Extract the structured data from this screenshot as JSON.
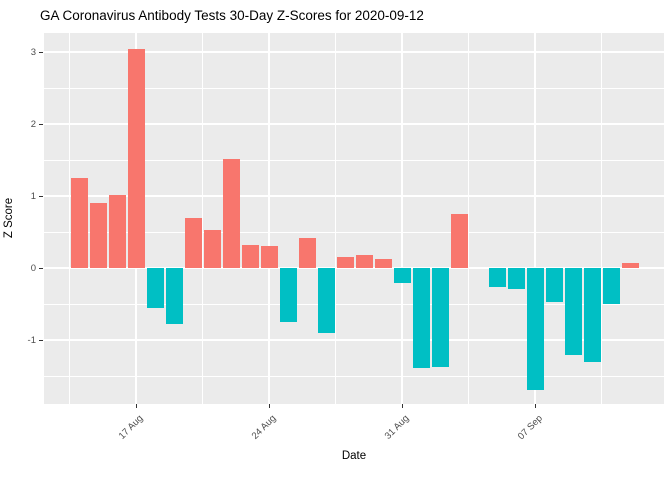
{
  "chart_data": {
    "type": "bar",
    "title": "GA Coronavirus Antibody Tests 30-Day Z-Scores for 2020-09-12",
    "xlabel": "Date",
    "ylabel": "Z Score",
    "ylim": [
      -1.89,
      3.26
    ],
    "grid": true,
    "legend": "none",
    "y_major_ticks": [
      3,
      2,
      1,
      0,
      -1
    ],
    "y_major_tick_labels": [
      "3",
      "2",
      "1",
      "0",
      "-1"
    ],
    "y_minor_ticks": [
      2.5,
      1.5,
      0.5,
      -0.5,
      -1.5
    ],
    "x_major_ticks_day_index": [
      3,
      10,
      17,
      24
    ],
    "x_major_tick_labels": [
      "17 Aug",
      "24 Aug",
      "31 Aug",
      "07 Sep"
    ],
    "x_minor_ticks_day_index": [
      -0.5,
      6.5,
      13.5,
      20.5,
      27.5
    ],
    "bars": [
      {
        "date": "14 Aug",
        "z": 1.25
      },
      {
        "date": "15 Aug",
        "z": 0.9
      },
      {
        "date": "16 Aug",
        "z": 1.02
      },
      {
        "date": "17 Aug",
        "z": 3.04
      },
      {
        "date": "18 Aug",
        "z": -0.56
      },
      {
        "date": "19 Aug",
        "z": -0.78
      },
      {
        "date": "20 Aug",
        "z": 0.7
      },
      {
        "date": "21 Aug",
        "z": 0.53
      },
      {
        "date": "22 Aug",
        "z": 1.51
      },
      {
        "date": "23 Aug",
        "z": 0.32
      },
      {
        "date": "24 Aug",
        "z": 0.31
      },
      {
        "date": "25 Aug",
        "z": -0.75
      },
      {
        "date": "26 Aug",
        "z": 0.41
      },
      {
        "date": "27 Aug",
        "z": -0.9
      },
      {
        "date": "28 Aug",
        "z": 0.15
      },
      {
        "date": "29 Aug",
        "z": 0.18
      },
      {
        "date": "30 Aug",
        "z": 0.13
      },
      {
        "date": "31 Aug",
        "z": -0.21
      },
      {
        "date": "01 Sep",
        "z": -1.39
      },
      {
        "date": "02 Sep",
        "z": -1.37
      },
      {
        "date": "03 Sep",
        "z": 0.75
      },
      {
        "date": "04 Sep",
        "z": null
      },
      {
        "date": "05 Sep",
        "z": -0.27
      },
      {
        "date": "06 Sep",
        "z": -0.29
      },
      {
        "date": "07 Sep",
        "z": -1.69
      },
      {
        "date": "08 Sep",
        "z": -0.47
      },
      {
        "date": "09 Sep",
        "z": -1.21
      },
      {
        "date": "10 Sep",
        "z": -1.3
      },
      {
        "date": "11 Sep",
        "z": -0.5
      },
      {
        "date": "12 Sep",
        "z": 0.07
      }
    ],
    "colors": {
      "positive_bar": "#F8766D",
      "negative_bar": "#00BFC4",
      "panel_background": "#EBEBEB",
      "gridline": "#FFFFFF",
      "axis_text": "#4D4D4D",
      "title_text": "#000000",
      "tick_mark": "#333333"
    }
  }
}
